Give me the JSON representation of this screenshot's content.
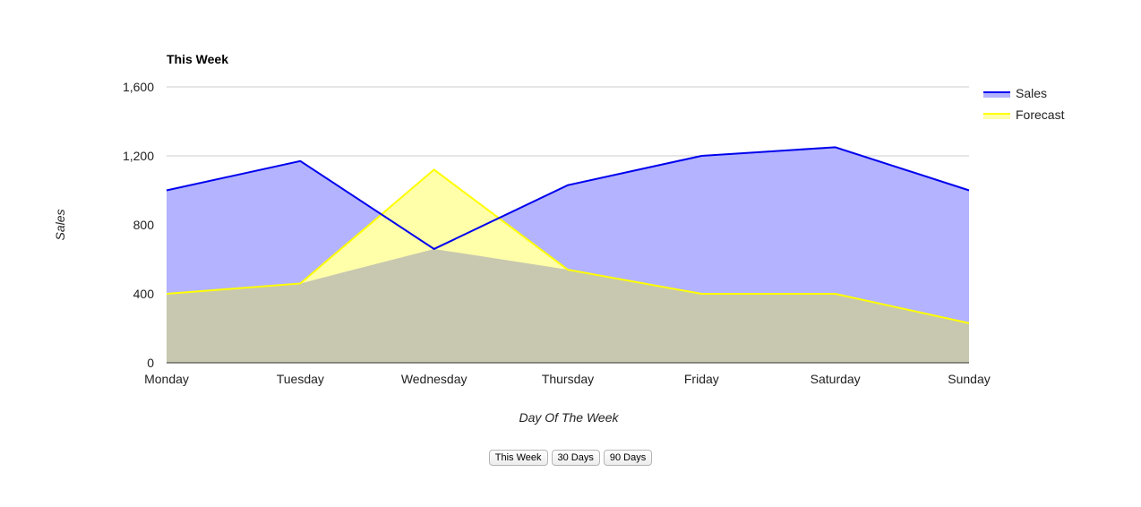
{
  "chart_data": {
    "type": "area",
    "title": "This Week",
    "xlabel": "Day Of The Week",
    "ylabel": "Sales",
    "categories": [
      "Monday",
      "Tuesday",
      "Wednesday",
      "Thursday",
      "Friday",
      "Saturday",
      "Sunday"
    ],
    "series": [
      {
        "name": "Sales",
        "values": [
          1000,
          1170,
          660,
          1030,
          1200,
          1250,
          1000
        ],
        "color": "#0000ee",
        "fill": "#b3b3ff"
      },
      {
        "name": "Forecast",
        "values": [
          400,
          460,
          1120,
          540,
          400,
          400,
          230
        ],
        "color": "#ffff00",
        "fill": "#ffffaa"
      }
    ],
    "overlap_fill": "#c8c8b0",
    "ylim": [
      0,
      1600
    ],
    "yticks": [
      0,
      400,
      800,
      1200,
      1600
    ],
    "ytick_labels": [
      "0",
      "400",
      "800",
      "1,200",
      "1,600"
    ],
    "grid": true,
    "legend": "right"
  },
  "buttons": {
    "this_week": "This Week",
    "days_30": "30 Days",
    "days_90": "90 Days"
  }
}
